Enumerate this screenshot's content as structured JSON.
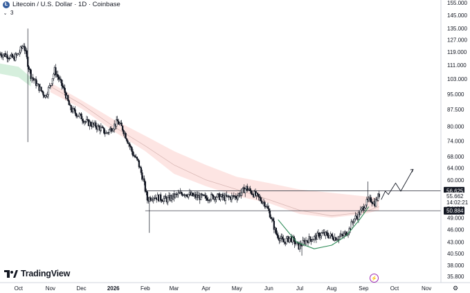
{
  "header": {
    "title": "Litecoin / U.S. Dollar · 1D · Coinbase",
    "indicator_count": "3"
  },
  "branding": {
    "name": "TradingView"
  },
  "price_tags": {
    "upper_line": "56.625",
    "current_price": "55.662",
    "countdown": "14:02:21",
    "lower_line": "50.884"
  },
  "chart_data": {
    "type": "candlestick",
    "title": "Litecoin / U.S. Dollar · 1D · Coinbase",
    "xlabel": "",
    "ylabel": "",
    "y_scale": "log",
    "y_ticks": [
      "155.000",
      "145.000",
      "135.000",
      "127.000",
      "119.000",
      "111.000",
      "103.000",
      "95.000",
      "87.500",
      "80.000",
      "74.000",
      "68.000",
      "64.000",
      "60.000",
      "56.000",
      "52.000",
      "49.000",
      "46.000",
      "43.000",
      "40.500",
      "38.000",
      "35.800"
    ],
    "y_tick_values": [
      155,
      145,
      135,
      127,
      119,
      111,
      103,
      95,
      87.5,
      80,
      74,
      68,
      64,
      60,
      56,
      52,
      49,
      46,
      43,
      40.5,
      38,
      35.8
    ],
    "x_ticks": [
      "Oct",
      "Nov",
      "Dec",
      "2026",
      "Feb",
      "Mar",
      "Apr",
      "May",
      "Jun",
      "Jul",
      "Aug",
      "Sep",
      "Oct",
      "Nov"
    ],
    "x_tick_dates": [
      "2025-10-01",
      "2025-11-01",
      "2025-12-01",
      "2026-01-01",
      "2026-02-01",
      "2026-03-01",
      "2026-04-01",
      "2026-05-01",
      "2026-06-01",
      "2026-07-01",
      "2026-08-01",
      "2026-09-01",
      "2026-10-01",
      "2026-11-01"
    ],
    "x_range": [
      "2025-09-13",
      "2026-11-15"
    ],
    "price_path": [
      [
        "2025-09-13",
        118
      ],
      [
        "2025-09-20",
        117
      ],
      [
        "2025-09-26",
        115
      ],
      [
        "2025-10-01",
        118
      ],
      [
        "2025-10-06",
        124
      ],
      [
        "2025-10-10",
        112
      ],
      [
        "2025-10-13",
        105
      ],
      [
        "2025-10-20",
        99
      ],
      [
        "2025-10-27",
        94
      ],
      [
        "2025-11-01",
        100
      ],
      [
        "2025-11-05",
        108
      ],
      [
        "2025-11-10",
        102
      ],
      [
        "2025-11-15",
        96
      ],
      [
        "2025-11-20",
        88
      ],
      [
        "2025-11-25",
        86
      ],
      [
        "2025-12-01",
        84
      ],
      [
        "2025-12-05",
        82
      ],
      [
        "2025-12-10",
        81
      ],
      [
        "2025-12-15",
        80
      ],
      [
        "2025-12-20",
        79
      ],
      [
        "2025-12-25",
        77
      ],
      [
        "2026-01-01",
        80
      ],
      [
        "2026-01-05",
        82
      ],
      [
        "2026-01-10",
        79
      ],
      [
        "2026-01-15",
        74
      ],
      [
        "2026-01-20",
        69
      ],
      [
        "2026-01-25",
        66
      ],
      [
        "2026-01-30",
        60
      ],
      [
        "2026-02-03",
        54
      ],
      [
        "2026-02-08",
        55
      ],
      [
        "2026-02-15",
        54.5
      ],
      [
        "2026-02-22",
        54
      ],
      [
        "2026-03-01",
        55
      ],
      [
        "2026-03-10",
        56
      ],
      [
        "2026-03-20",
        55
      ],
      [
        "2026-04-01",
        54.5
      ],
      [
        "2026-04-10",
        55
      ],
      [
        "2026-04-20",
        54.5
      ],
      [
        "2026-05-01",
        55
      ],
      [
        "2026-05-10",
        57.5
      ],
      [
        "2026-05-20",
        55
      ],
      [
        "2026-05-28",
        53
      ],
      [
        "2026-06-02",
        50
      ],
      [
        "2026-06-08",
        45
      ],
      [
        "2026-06-15",
        43
      ],
      [
        "2026-06-22",
        44
      ],
      [
        "2026-06-30",
        42
      ],
      [
        "2026-07-08",
        43.5
      ],
      [
        "2026-07-15",
        44
      ],
      [
        "2026-07-22",
        45
      ],
      [
        "2026-07-30",
        44.5
      ],
      [
        "2026-08-05",
        44
      ],
      [
        "2026-08-12",
        44.5
      ],
      [
        "2026-08-18",
        46
      ],
      [
        "2026-08-22",
        48.5
      ],
      [
        "2026-08-26",
        49.5
      ],
      [
        "2026-08-30",
        51
      ],
      [
        "2026-09-03",
        53
      ],
      [
        "2026-09-08",
        54
      ],
      [
        "2026-09-12",
        53
      ],
      [
        "2026-09-16",
        55.5
      ]
    ],
    "levels": [
      {
        "value": 56.625,
        "label": "56.625"
      },
      {
        "value": 50.884,
        "label": "50.884"
      }
    ],
    "current_price": 55.662,
    "projection_path": [
      [
        "2026-09-18",
        54.0
      ],
      [
        "2026-09-22",
        56.5
      ],
      [
        "2026-09-25",
        55.5
      ],
      [
        "2026-10-02",
        59.0
      ],
      [
        "2026-10-07",
        56.5
      ],
      [
        "2026-10-19",
        63.5
      ]
    ],
    "cup_curve": [
      [
        "2026-06-10",
        48.5
      ],
      [
        "2026-06-28",
        43.0
      ],
      [
        "2026-07-15",
        41.5
      ],
      [
        "2026-08-01",
        42.3
      ],
      [
        "2026-08-15",
        44.5
      ],
      [
        "2026-08-28",
        48.5
      ],
      [
        "2026-09-06",
        52.0
      ]
    ],
    "ma_band_upper": [
      [
        "2025-11-01",
        101
      ],
      [
        "2025-12-01",
        92
      ],
      [
        "2026-01-01",
        83
      ],
      [
        "2026-02-01",
        76
      ],
      [
        "2026-03-01",
        70
      ],
      [
        "2026-04-01",
        65
      ],
      [
        "2026-05-01",
        61
      ],
      [
        "2026-06-01",
        59
      ],
      [
        "2026-07-01",
        57
      ],
      [
        "2026-08-01",
        56
      ],
      [
        "2026-09-01",
        55
      ],
      [
        "2026-09-16",
        54.5
      ]
    ],
    "ma_band_lower": [
      [
        "2025-11-01",
        96
      ],
      [
        "2025-12-01",
        88
      ],
      [
        "2026-01-01",
        78
      ],
      [
        "2026-02-01",
        70
      ],
      [
        "2026-03-01",
        62
      ],
      [
        "2026-04-01",
        58
      ],
      [
        "2026-05-01",
        55
      ],
      [
        "2026-06-01",
        53
      ],
      [
        "2026-07-01",
        50
      ],
      [
        "2026-08-01",
        49
      ],
      [
        "2026-09-01",
        50
      ],
      [
        "2026-09-16",
        51
      ]
    ],
    "ma_line": [
      [
        "2025-11-01",
        99
      ],
      [
        "2025-12-01",
        90
      ],
      [
        "2026-01-01",
        80
      ],
      [
        "2026-02-01",
        72
      ],
      [
        "2026-03-01",
        65
      ],
      [
        "2026-04-01",
        60
      ],
      [
        "2026-05-01",
        57
      ],
      [
        "2026-06-01",
        54
      ],
      [
        "2026-07-01",
        51
      ],
      [
        "2026-08-01",
        49.5
      ],
      [
        "2026-09-01",
        50.5
      ],
      [
        "2026-09-16",
        52
      ]
    ],
    "green_band": [
      [
        "2025-09-13",
        112,
        106
      ],
      [
        "2025-10-01",
        110,
        104
      ],
      [
        "2025-10-13",
        104,
        99
      ]
    ],
    "colors": {
      "candle": "#131722",
      "ma_band_fill": "#fde5e3",
      "green_band_fill": "#d6efdd",
      "cup_curve": "#2e8b57",
      "level_line": "#434651",
      "tag_dark": "#131722",
      "ma_line": "#d9b8b5",
      "grid": "#e6e8ee"
    },
    "grid": false,
    "legend": "none"
  }
}
